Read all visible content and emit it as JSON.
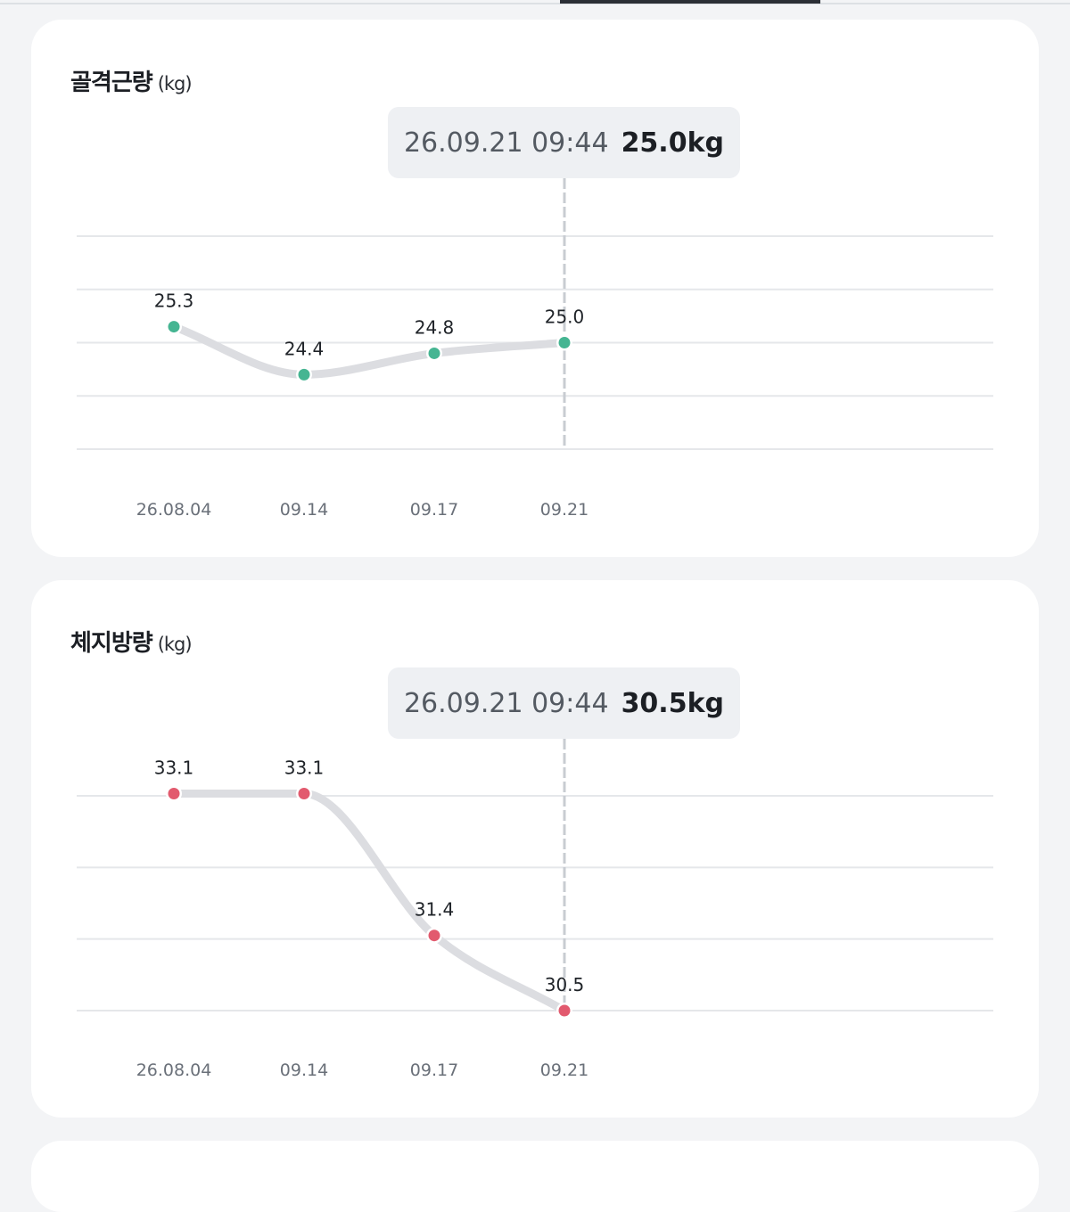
{
  "tabs": {
    "active_color": "#2b2f36"
  },
  "chart_data": [
    {
      "type": "line",
      "title": "골격근량",
      "unit": "(kg)",
      "categories": [
        "26.08.04",
        "09.14",
        "09.17",
        "09.21"
      ],
      "series": [
        {
          "values": [
            25.3,
            24.4,
            24.8,
            25.0
          ],
          "color": "#45b592"
        }
      ],
      "value_labels": [
        "25.3",
        "24.4",
        "24.8",
        "25.0"
      ],
      "ylim": [
        23.0,
        27.0
      ],
      "grid": true,
      "tooltip": {
        "date": "26.09.21 09:44",
        "value": "25.0kg"
      }
    },
    {
      "type": "line",
      "title": "체지방량",
      "unit": "(kg)",
      "categories": [
        "26.08.04",
        "09.14",
        "09.17",
        "09.21"
      ],
      "series": [
        {
          "values": [
            33.1,
            33.1,
            31.4,
            30.5
          ],
          "color": "#e25a6e"
        }
      ],
      "value_labels": [
        "33.1",
        "33.1",
        "31.4",
        "30.5"
      ],
      "ylim": [
        30.5,
        33.5
      ],
      "grid": true,
      "tooltip": {
        "date": "26.09.21 09:44",
        "value": "30.5kg"
      }
    }
  ]
}
